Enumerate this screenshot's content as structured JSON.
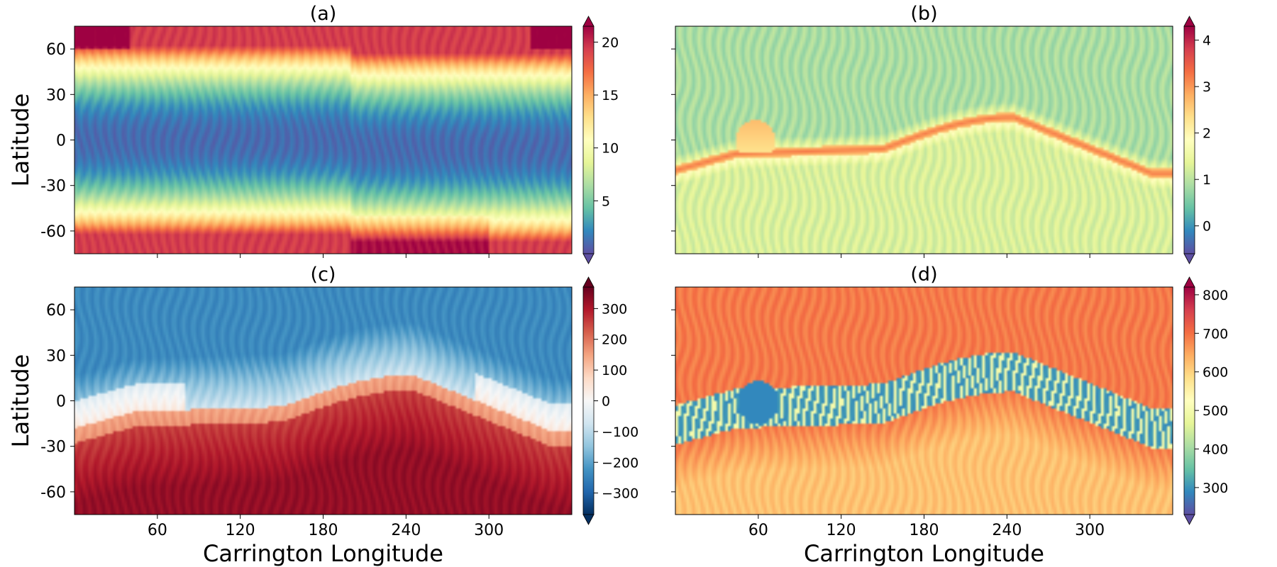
{
  "figure": {
    "x_label": "Carrington Longitude",
    "y_label": "Latitude"
  },
  "chart_data": [
    {
      "type": "heatmap",
      "title": "(a)",
      "xlim": [
        0,
        360
      ],
      "ylim": [
        -75,
        75
      ],
      "x_ticks": [
        60,
        120,
        180,
        240,
        300
      ],
      "y_ticks": [
        60,
        30,
        0,
        -30,
        -60
      ],
      "y_tick_labels": [
        "60",
        "30",
        "0",
        "-30",
        "-60"
      ],
      "show_x_tick_labels": false,
      "show_y_label": true,
      "show_x_label": false,
      "colormap": [
        "#5e4fa2",
        "#3288bd",
        "#66c2a5",
        "#abdda4",
        "#e6f598",
        "#ffffbf",
        "#fee08b",
        "#fdae61",
        "#f46d43",
        "#d53e4f",
        "#9e0142"
      ],
      "colorbar": {
        "range": [
          0,
          21.5
        ],
        "ticks": [
          5,
          10,
          15,
          20
        ],
        "tick_labels": [
          "5",
          "10",
          "15",
          "20"
        ]
      }
    },
    {
      "type": "heatmap",
      "title": "(b)",
      "xlim": [
        0,
        360
      ],
      "ylim": [
        -75,
        75
      ],
      "x_ticks": [
        60,
        120,
        180,
        240,
        300
      ],
      "y_ticks": [
        60,
        30,
        0,
        -30,
        -60
      ],
      "show_x_tick_labels": false,
      "show_y_tick_labels": false,
      "show_y_label": false,
      "show_x_label": false,
      "colormap": [
        "#5e4fa2",
        "#3288bd",
        "#66c2a5",
        "#abdda4",
        "#e6f598",
        "#ffffbf",
        "#fee08b",
        "#fdae61",
        "#f46d43",
        "#d53e4f",
        "#9e0142"
      ],
      "colorbar": {
        "range": [
          -0.6,
          4.3
        ],
        "ticks": [
          0,
          1,
          2,
          3,
          4
        ],
        "tick_labels": [
          "0",
          "1",
          "2",
          "3",
          "4"
        ]
      }
    },
    {
      "type": "heatmap",
      "title": "(c)",
      "xlim": [
        0,
        360
      ],
      "ylim": [
        -75,
        75
      ],
      "x_ticks": [
        60,
        120,
        180,
        240,
        300
      ],
      "y_ticks": [
        60,
        30,
        0,
        -30,
        -60
      ],
      "y_tick_labels": [
        "60",
        "30",
        "0",
        "-30",
        "-60"
      ],
      "x_tick_labels": [
        "60",
        "120",
        "180",
        "240",
        "300"
      ],
      "show_x_tick_labels": true,
      "show_y_label": true,
      "show_x_label": true,
      "colormap": [
        "#053061",
        "#2166ac",
        "#4393c3",
        "#92c5de",
        "#d1e5f0",
        "#f7f7f7",
        "#fddbc7",
        "#f4a582",
        "#d6604d",
        "#b2182b",
        "#67001f"
      ],
      "colorbar": {
        "range": [
          -370,
          370
        ],
        "ticks": [
          300,
          200,
          100,
          0,
          -100,
          -200,
          -300
        ],
        "tick_labels": [
          "300",
          "200",
          "100",
          "0",
          "−100",
          "−200",
          "−300"
        ]
      }
    },
    {
      "type": "heatmap",
      "title": "(d)",
      "xlim": [
        0,
        360
      ],
      "ylim": [
        -75,
        75
      ],
      "x_ticks": [
        60,
        120,
        180,
        240,
        300
      ],
      "y_ticks": [
        60,
        30,
        0,
        -30,
        -60
      ],
      "x_tick_labels": [
        "60",
        "120",
        "180",
        "240",
        "300"
      ],
      "show_x_tick_labels": true,
      "show_y_tick_labels": false,
      "show_y_label": false,
      "show_x_label": true,
      "colormap": [
        "#5e4fa2",
        "#3288bd",
        "#66c2a5",
        "#abdda4",
        "#e6f598",
        "#ffffbf",
        "#fee08b",
        "#fdae61",
        "#f46d43",
        "#d53e4f",
        "#9e0142"
      ],
      "colorbar": {
        "range": [
          230,
          820
        ],
        "ticks": [
          300,
          400,
          500,
          600,
          700,
          800
        ],
        "tick_labels": [
          "300",
          "400",
          "500",
          "600",
          "700",
          "800"
        ]
      }
    }
  ]
}
